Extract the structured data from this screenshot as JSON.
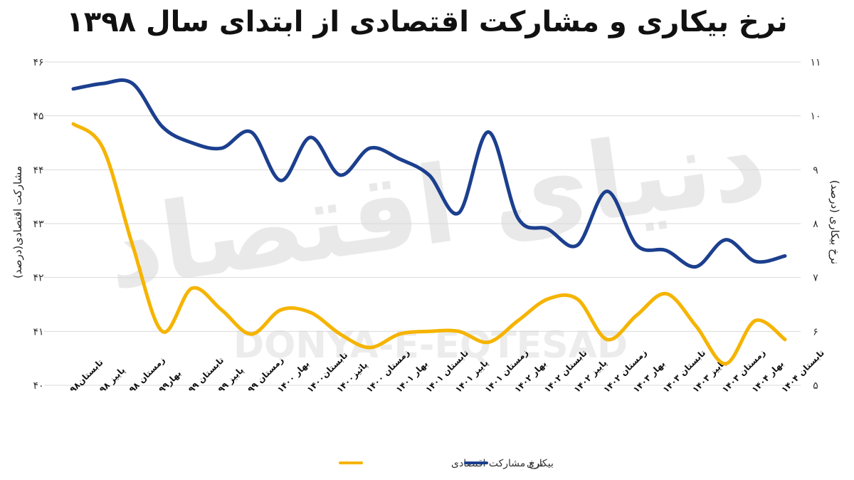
{
  "chart_data": {
    "type": "line",
    "title": "نرخ بیکاری و مشارکت اقتصادی از ابتدای سال ۱۳۹۸",
    "watermark": {
      "persian": "دنیای اقتصاد",
      "latin": "DONYA-E-EQTESAD"
    },
    "categories": [
      "تابستان۹۸",
      "پاییز ۹۸",
      "زمستان ۹۸",
      "بهار۹۹",
      "تابستان ۹۹",
      "پاییز ۹۹",
      "زمستان ۹۹",
      "بهار ۱۴۰۰",
      "تابستان۱۴۰۰",
      "پائیز۱۴۰۰",
      "زمستان ۱۴۰۰",
      "بهار ۱۴۰۱",
      "تابستان ۱۴۰۱",
      "پاییز ۱۴۰۱",
      "زمستان ۱۴۰۱",
      "بهار ۱۴۰۲",
      "تابستان ۱۴۰۲",
      "پاییز ۱۴۰۲",
      "زمستان ۱۴۰۲",
      "بهار ۱۴۰۳",
      "تابستان ۱۴۰۳",
      "پاییز ۱۴۰۳",
      "زمستان ۱۴۰۳",
      "بهار ۱۴۰۴",
      "تابستان ۱۴۰۴"
    ],
    "series": [
      {
        "name": "نرخ مشارکت اقتصادی",
        "color": "#F5B400",
        "axis": "left",
        "values": [
          44.85,
          44.4,
          42.6,
          41.0,
          41.8,
          41.4,
          40.95,
          41.4,
          41.35,
          40.95,
          40.7,
          40.95,
          41.0,
          41.0,
          40.8,
          41.2,
          41.6,
          41.6,
          40.85,
          41.3,
          41.7,
          41.1,
          40.4,
          41.2,
          40.85
        ]
      },
      {
        "name": "بیکاری",
        "color": "#1C3F8E",
        "axis": "right",
        "values": [
          10.5,
          10.6,
          10.6,
          9.8,
          9.5,
          9.4,
          9.7,
          8.8,
          9.6,
          8.9,
          9.4,
          9.2,
          8.9,
          8.2,
          9.7,
          8.1,
          7.9,
          7.6,
          8.6,
          7.6,
          7.5,
          7.2,
          7.7,
          7.3,
          7.4
        ]
      }
    ],
    "y_left": {
      "label": "مشارکت اقتصادی(درصد)",
      "ylim": [
        40,
        46
      ],
      "ticks": [
        40,
        41,
        42,
        43,
        44,
        45,
        46
      ],
      "tick_labels": [
        "۴۰",
        "۴۱",
        "۴۲",
        "۴۳",
        "۴۴",
        "۴۵",
        "۴۶"
      ]
    },
    "y_right": {
      "label": "نرخ بیکاری (درصد)",
      "ylim": [
        5,
        11
      ],
      "ticks": [
        5,
        6,
        7,
        8,
        9,
        10,
        11
      ],
      "tick_labels": [
        "۵",
        "۶",
        "۷",
        "۸",
        "۹",
        "۱۰",
        "۱۱"
      ]
    },
    "grid": true,
    "legend": "bottom-center"
  }
}
